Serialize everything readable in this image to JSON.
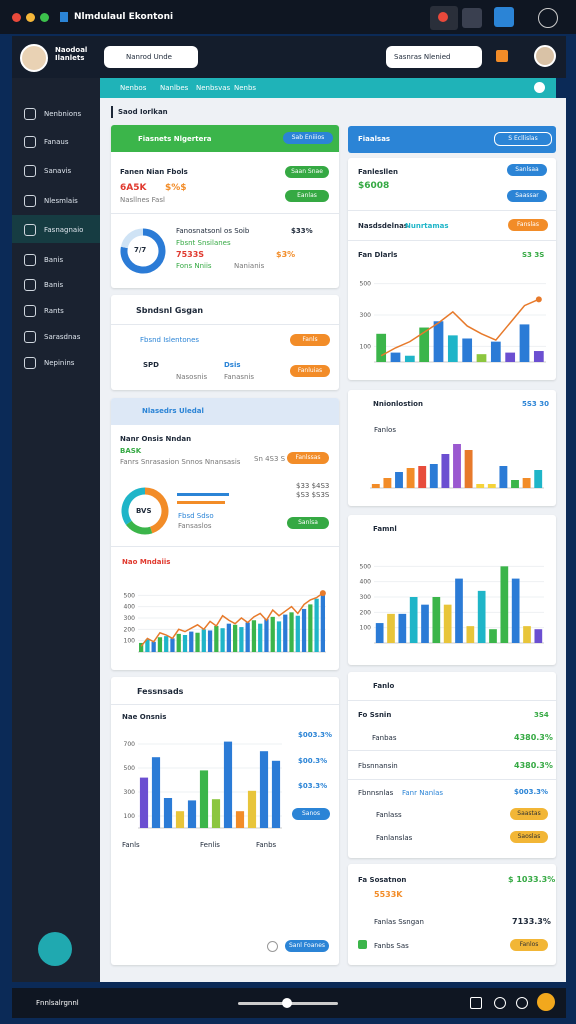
{
  "window": {
    "title": "Nlmdulaul Ekontoni"
  },
  "header": {
    "user": "Naodoal Ilanlets",
    "search": "Nanrod Unde",
    "search2": "Sasnras Nlenied"
  },
  "tabs": [
    "Nenbos",
    "Nanlbes",
    "Nenbsvas",
    "Nenbs"
  ],
  "sidebar": [
    "Nenbnions",
    "Fanaus",
    "Sanavis",
    "Nlesmlais",
    "Fasnagnaio",
    "Banis",
    "Banis",
    "Rants",
    "Sarasdnas",
    "Nepinins"
  ],
  "breadcrumb": "Saod Iorlkan",
  "left": {
    "p1": {
      "title": "Fiasnets Nlgertera",
      "button": "Sab Eniiios",
      "heading": "Fanen Nian Fbols",
      "kpi1": "6A5K",
      "kpi2": "$%$",
      "sub": "Nasllnes Fasl",
      "pill1": "Saan Snae",
      "pill2": "Eanlas",
      "donut_label": "7/7",
      "row1": "Fanosnatsonl os Soib",
      "row2": "Fbsnt Snsilanes",
      "row3": "7533S",
      "row4": "$3%",
      "row5": "$33%",
      "row6": "Fons Nniis",
      "row7": "Nanianis"
    },
    "p2": {
      "title": "Sbndsnl Gsgan",
      "row": "Fbsnd Islentones",
      "pill1": "Fanls",
      "a": "SPD",
      "b": "Dsis",
      "c": "Nasosnis",
      "d": "Fanasnis",
      "pill2": "Fanluias"
    },
    "p3": {
      "title": "Nlasedrs Uledal",
      "heading": "Nanr Onsis Nndan",
      "kpi": "BASK",
      "sub": "Fanrs Snrasasion Snnos Nnansasis",
      "meta": "Sn 4S3 S",
      "pill1": "Fanlssas",
      "donut_label": "BVS",
      "r1": "$33 $4S3",
      "r2": "$S3 $S3S",
      "r3": "Fbsd Sdso",
      "r4": "Fansaslos",
      "pill2": "Sanlsa",
      "chart_title": "Nao Mndaiis"
    },
    "p4": {
      "title": "Fessnsads",
      "heading": "Nae Onsnis",
      "r1": "$003.3%",
      "r2": "$00.3%",
      "r3": "$03.3%",
      "pill": "Sanos",
      "foot": "Fanls",
      "foot2": "Fenlis",
      "foot3": "Fanbs",
      "btn": "Sanl Foanes"
    }
  },
  "right": {
    "r1": {
      "title": "Fiaalsas",
      "button": "S Ecllislas"
    },
    "r2": {
      "title": "Fanlesllen",
      "kpi": "$6008",
      "pill1": "Sanlsaa",
      "pill2": "Saassar",
      "heading": "Nasdsdelnas",
      "heading2": "Nunrtamas",
      "pill3": "Fanslas",
      "chart_title": "Fan Dlarls",
      "chart_meta": "S3 3S"
    },
    "r3": {
      "title": "Nnionlostion",
      "meta": "5S3 30",
      "sub": "Fanlos"
    },
    "r4": {
      "title": "Famnl"
    },
    "r5": {
      "title": "Fanlo",
      "h": "Fo Ssnin",
      "hv": "3S4",
      "rows": [
        "Fanbas",
        "Fbsnnansin",
        "Fbnnsnlas",
        "Fanlass",
        "Fanlanslas"
      ],
      "vals": [
        "4380.3%",
        "4380.3%",
        "$003.3%"
      ],
      "tag": "Fanr Nanlas",
      "pill1": "Saastas",
      "pill2": "Saoslas"
    },
    "r6": {
      "title": "Fa Sosatnon",
      "v1": "$ 1033.3%",
      "kpi": "5533K",
      "row": "Fanlas Ssngan",
      "v2": "7133.3%",
      "row2": "Fanbs Sas",
      "pill": "Fanlos"
    }
  },
  "footer": {
    "label": "Fnnlsalrgnnl"
  },
  "charts": [
    {
      "ylim": [
        0,
        600
      ],
      "yticks": [
        100,
        300,
        500
      ],
      "values": [
        180,
        60,
        40,
        220,
        260,
        170,
        150,
        50,
        130,
        60,
        240,
        70
      ],
      "colors": [
        "#3bb54a",
        "#2b7bd6",
        "#1fb5c8",
        "#3bb54a",
        "#2b7bd6",
        "#1fb5c8",
        "#2b7bd6",
        "#8cc63f",
        "#2b7bd6",
        "#6b4fd1",
        "#2b7bd6",
        "#6b4fd1"
      ],
      "line": [
        40,
        90,
        130,
        190,
        250,
        320,
        230,
        180,
        140,
        250,
        360,
        400
      ],
      "line_color": "#e77a2b"
    },
    {
      "ylim": [
        0,
        130
      ],
      "values": [
        10,
        25,
        40,
        50,
        55,
        60,
        85,
        110,
        95,
        10,
        10,
        55,
        20,
        25,
        45
      ],
      "colors": [
        "#f28c28",
        "#f28c28",
        "#2b7bd6",
        "#f28c28",
        "#e74c3c",
        "#2b7bd6",
        "#6b4fd1",
        "#9b59d0",
        "#e77a2b",
        "#f5d33b",
        "#f5d33b",
        "#2b7bd6",
        "#3bb54a",
        "#f28c28",
        "#1fb5c8"
      ]
    },
    {
      "ylim": [
        0,
        600
      ],
      "yticks": [
        100,
        200,
        300,
        400,
        500
      ],
      "values": [
        130,
        190,
        190,
        300,
        250,
        300,
        250,
        420,
        110,
        340,
        90,
        500,
        420,
        110,
        90
      ],
      "colors": [
        "#2b7bd6",
        "#e8c53a",
        "#2b7bd6",
        "#1fb5c8",
        "#2b7bd6",
        "#3bb54a",
        "#e8c53a",
        "#2b7bd6",
        "#e8c53a",
        "#1fb5c8",
        "#3bb54a",
        "#3bb54a",
        "#2b7bd6",
        "#e8c53a",
        "#6b4fd1"
      ]
    },
    {
      "ylim": [
        0,
        600
      ],
      "yticks": [
        100,
        200,
        300,
        400,
        500
      ],
      "values": [
        80,
        110,
        90,
        130,
        140,
        120,
        160,
        150,
        180,
        170,
        200,
        190,
        230,
        210,
        250,
        240,
        220,
        260,
        280,
        250,
        290,
        310,
        270,
        330,
        350,
        320,
        380,
        420,
        470,
        500
      ],
      "colors": [
        "#3bb54a",
        "#1fb5c8",
        "#2b7bd6",
        "#3bb54a",
        "#1fb5c8",
        "#2b7bd6"
      ],
      "line": [
        50,
        120,
        90,
        170,
        150,
        120,
        200,
        180,
        210,
        240,
        200,
        270,
        230,
        320,
        280,
        250,
        300,
        260,
        310,
        340,
        280,
        370,
        320,
        360,
        400,
        340,
        420,
        460,
        480,
        520
      ],
      "line_color": "#e77a2b"
    },
    {
      "ylim": [
        0,
        800
      ],
      "yticks": [
        100,
        300,
        500,
        700
      ],
      "values": [
        420,
        590,
        250,
        140,
        230,
        480,
        240,
        720,
        140,
        310,
        640,
        560
      ],
      "colors": [
        "#6b4fd1",
        "#2b7bd6",
        "#2b7bd6",
        "#e8c53a",
        "#2b7bd6",
        "#3bb54a",
        "#8cc63f",
        "#2b7bd6",
        "#f28c28",
        "#e8c53a",
        "#2b7bd6",
        "#2b7bd6"
      ]
    }
  ],
  "donuts": [
    {
      "values": [
        78,
        22
      ],
      "colors": [
        "#2b7bd6",
        "#cfe3f5"
      ]
    },
    {
      "values": [
        45,
        20,
        35
      ],
      "colors": [
        "#f28c28",
        "#3bb54a",
        "#1fb5c8"
      ]
    }
  ]
}
